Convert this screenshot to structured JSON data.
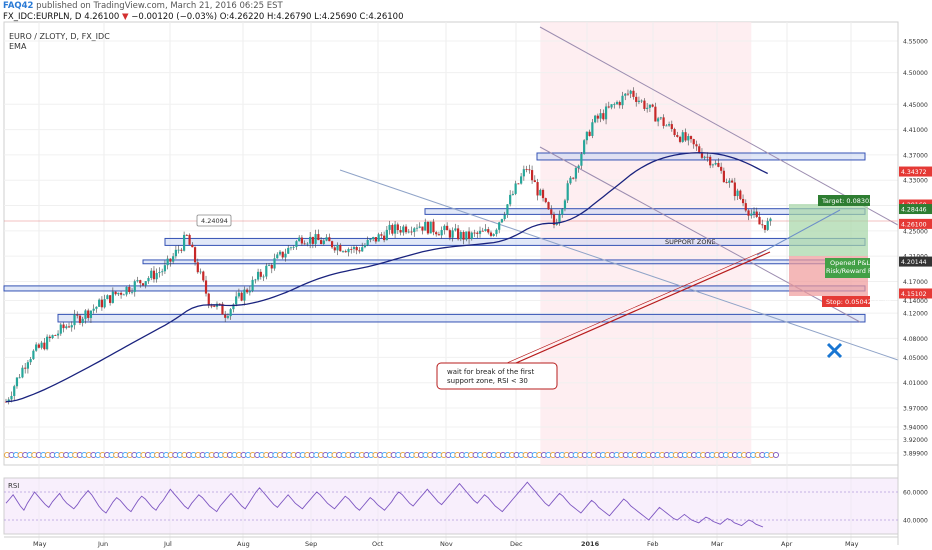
{
  "header": {
    "author": "FAQ42",
    "published_text": "published on TradingView.com, March 21, 2016 06:25 EST",
    "symbol": "FX_IDC:EURPLN, D",
    "last": "4.26100",
    "change_arrow": "▼",
    "change": "−0.00120 (−0.03%)",
    "ohlc": "O:4.26220 H:4.26790 L:4.25690 C:4.26100"
  },
  "legend": {
    "title": "EURO / ZLOTY, D, FX_IDC",
    "indicator": "EMA"
  },
  "watermark": {
    "symbol": "EURPLN, D",
    "name": "EURO / ZLOTY"
  },
  "chart_data": {
    "type": "candlestick",
    "symbol": "EURO / ZLOTY",
    "interval": "D",
    "ylim": [
      3.88,
      4.58
    ],
    "x_labels": [
      "May",
      "Jun",
      "Jul",
      "Aug",
      "Sep",
      "Oct",
      "Nov",
      "Dec",
      "2016",
      "Feb",
      "Mar",
      "Apr",
      "May"
    ],
    "y_ticks": [
      "4.55000",
      "4.50000",
      "4.45000",
      "4.41000",
      "4.37000",
      "4.33000",
      "4.29000",
      "4.25000",
      "4.21000",
      "4.17000",
      "4.14000",
      "4.12000",
      "4.08000",
      "4.05000",
      "4.01000",
      "3.97000",
      "3.94000",
      "3.92000",
      "3.89900"
    ],
    "price_badges": [
      {
        "label": "4.34372",
        "value": 4.34372,
        "color": "#e53935"
      },
      {
        "label": "4.29160",
        "value": 4.2916,
        "color": "#e53935"
      },
      {
        "label": "4.28446",
        "value": 4.28446,
        "color": "#2e7d32"
      },
      {
        "label": "4.26100",
        "value": 4.261,
        "color": "#e53935"
      },
      {
        "label": "4.20144",
        "value": 4.20144,
        "color": "#333333"
      },
      {
        "label": "4.15102",
        "value": 4.15102,
        "color": "#e53935"
      }
    ],
    "callout_high": "4.24094",
    "zone_label": "SUPPORT ZONE",
    "position": {
      "target": "Target: 0.08302 (1.9",
      "pnl": "Opened P&L: 0.059",
      "rr": "Risk/Reward Ratio: 1",
      "stop": "Stop: 0.05042 (1.20"
    },
    "note": [
      "wait for break of the first",
      "support zone, RSI < 30"
    ],
    "rsi": {
      "label": "RSI",
      "ticks": [
        "60.0000",
        "40.0000"
      ],
      "values": [
        52,
        55,
        58,
        54,
        50,
        47,
        52,
        56,
        60,
        57,
        54,
        51,
        49,
        53,
        56,
        59,
        55,
        52,
        50,
        48,
        51,
        55,
        58,
        61,
        58,
        54,
        50,
        47,
        45,
        49,
        53,
        56,
        54,
        51,
        48,
        46,
        50,
        54,
        57,
        55,
        52,
        49,
        47,
        51,
        54,
        58,
        62,
        59,
        56,
        53,
        50,
        48,
        52,
        55,
        58,
        56,
        53,
        50,
        48,
        46,
        50,
        53,
        56,
        59,
        56,
        53,
        50,
        48,
        52,
        56,
        60,
        63,
        60,
        57,
        54,
        51,
        49,
        52,
        55,
        58,
        55,
        52,
        50,
        48,
        51,
        54,
        57,
        60,
        58,
        55,
        52,
        50,
        48,
        51,
        54,
        57,
        55,
        52,
        49,
        47,
        50,
        53,
        56,
        54,
        51,
        49,
        47,
        50,
        53,
        57,
        60,
        58,
        55,
        52,
        50,
        53,
        56,
        59,
        62,
        59,
        56,
        53,
        51,
        54,
        57,
        60,
        63,
        66,
        63,
        60,
        57,
        54,
        52,
        55,
        58,
        56,
        53,
        50,
        48,
        46,
        49,
        52,
        55,
        58,
        61,
        64,
        67,
        64,
        61,
        58,
        55,
        52,
        50,
        53,
        56,
        59,
        57,
        54,
        51,
        49,
        47,
        45,
        48,
        51,
        54,
        52,
        49,
        47,
        45,
        43,
        46,
        49,
        52,
        55,
        53,
        50,
        48,
        46,
        44,
        42,
        40,
        43,
        46,
        49,
        47,
        45,
        43,
        41,
        40,
        42,
        44,
        42,
        40,
        39,
        38,
        40,
        42,
        41,
        39,
        38,
        37,
        39,
        41,
        40,
        38,
        37,
        36,
        38,
        40,
        39,
        37,
        36,
        35
      ]
    }
  }
}
